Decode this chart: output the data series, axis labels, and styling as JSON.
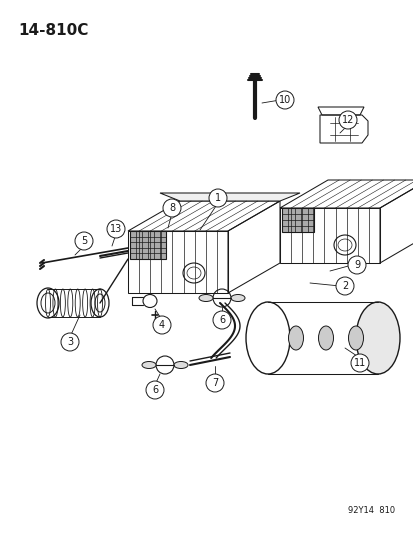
{
  "title": "14-810C",
  "footer": "92Y14  810",
  "bg_color": "#ffffff",
  "text_color": "#1a1a1a",
  "lc": "#1a1a1a",
  "lw": 0.75
}
